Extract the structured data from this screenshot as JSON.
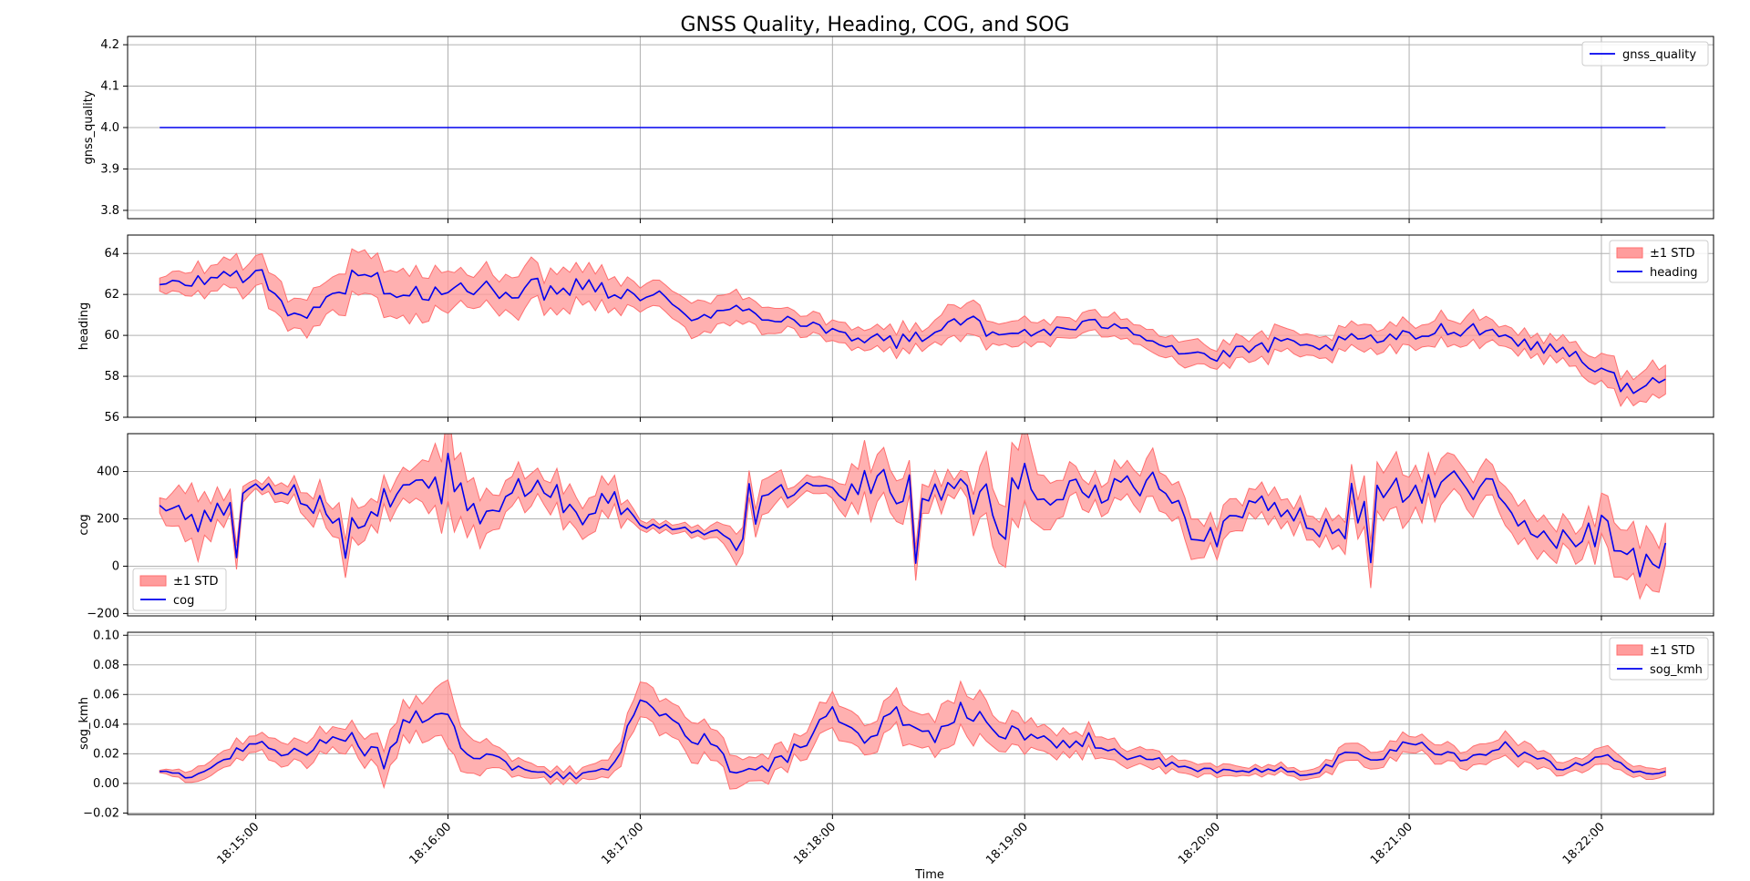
{
  "figure": {
    "title": "GNSS Quality, Heading, COG, and SOG",
    "xlabel": "Time"
  },
  "colors": {
    "line": "#0000ee",
    "band_fill": "#ff9c9c",
    "band_edge": "#ff6f6f",
    "grid": "#b0b0b0"
  },
  "chart_data": [
    {
      "type": "line",
      "ylabel": "gnss_quality",
      "ylim": [
        3.78,
        4.22
      ],
      "yticks": [
        3.8,
        3.9,
        4.0,
        4.1,
        4.2
      ],
      "ytick_labels": [
        "3.8",
        "3.9",
        "4.0",
        "4.1",
        "4.2"
      ],
      "legend_loc": "upper right",
      "grid": true,
      "series": [
        {
          "name": "gnss_quality",
          "x": [
            "18:14:30",
            "18:22:20"
          ],
          "values": [
            4.0,
            4.0
          ]
        }
      ]
    },
    {
      "type": "area",
      "ylabel": "heading",
      "ylim": [
        56,
        64.9
      ],
      "yticks": [
        56,
        58,
        60,
        62,
        64
      ],
      "ytick_labels": [
        "56",
        "58",
        "60",
        "62",
        "64"
      ],
      "legend_loc": "upper right",
      "grid": true,
      "band_label": "±1 STD",
      "series": [
        {
          "name": "heading",
          "x": [
            "18:14:30",
            "18:14:40",
            "18:14:50",
            "18:15:00",
            "18:15:10",
            "18:15:20",
            "18:15:30",
            "18:15:40",
            "18:15:50",
            "18:16:00",
            "18:16:10",
            "18:16:20",
            "18:16:30",
            "18:16:40",
            "18:16:50",
            "18:17:00",
            "18:17:10",
            "18:17:20",
            "18:17:30",
            "18:17:40",
            "18:17:50",
            "18:18:00",
            "18:18:10",
            "18:18:20",
            "18:18:30",
            "18:18:40",
            "18:18:50",
            "18:19:00",
            "18:19:10",
            "18:19:20",
            "18:19:30",
            "18:19:40",
            "18:19:50",
            "18:20:00",
            "18:20:10",
            "18:20:20",
            "18:20:30",
            "18:20:40",
            "18:20:50",
            "18:21:00",
            "18:21:10",
            "18:21:20",
            "18:21:30",
            "18:21:40",
            "18:21:50",
            "18:22:00",
            "18:22:10",
            "18:22:20"
          ],
          "values": [
            62.4,
            62.6,
            62.9,
            63.1,
            61.2,
            61.1,
            62.9,
            62.6,
            61.8,
            62.3,
            62.1,
            62.4,
            62.2,
            62.6,
            62.3,
            62.0,
            61.7,
            60.8,
            61.3,
            61.0,
            60.7,
            60.2,
            59.9,
            59.7,
            60.0,
            61.0,
            59.9,
            60.2,
            60.2,
            60.5,
            60.6,
            59.8,
            59.2,
            58.9,
            59.3,
            59.6,
            59.3,
            59.7,
            59.8,
            59.9,
            60.3,
            60.4,
            60.0,
            59.4,
            59.3,
            58.2,
            57.3,
            57.8
          ],
          "std": [
            0.4,
            0.6,
            0.7,
            0.8,
            0.8,
            0.9,
            1.0,
            1.1,
            1.2,
            0.9,
            0.8,
            1.0,
            0.9,
            1.0,
            0.8,
            0.6,
            0.7,
            0.8,
            0.7,
            0.6,
            0.5,
            0.5,
            0.5,
            0.6,
            0.5,
            0.9,
            0.6,
            0.6,
            0.5,
            0.5,
            0.5,
            0.5,
            0.6,
            0.5,
            0.6,
            0.6,
            0.5,
            0.6,
            0.6,
            0.6,
            0.6,
            0.7,
            0.5,
            0.5,
            0.6,
            0.7,
            0.7,
            0.8
          ]
        }
      ]
    },
    {
      "type": "area",
      "ylabel": "cog",
      "ylim": [
        -210,
        560
      ],
      "yticks": [
        -200,
        0,
        200,
        400
      ],
      "ytick_labels": [
        "−200",
        "0",
        "200",
        "400"
      ],
      "legend_loc": "lower left",
      "grid": true,
      "band_label": "±1 STD",
      "series": [
        {
          "name": "cog",
          "x": [
            "18:14:30",
            "18:14:40",
            "18:14:50",
            "18:15:00",
            "18:15:10",
            "18:15:20",
            "18:15:30",
            "18:15:40",
            "18:15:50",
            "18:16:00",
            "18:16:10",
            "18:16:20",
            "18:16:30",
            "18:16:40",
            "18:16:50",
            "18:17:00",
            "18:17:10",
            "18:17:20",
            "18:17:30",
            "18:17:40",
            "18:17:50",
            "18:18:00",
            "18:18:10",
            "18:18:20",
            "18:18:30",
            "18:18:40",
            "18:18:50",
            "18:19:00",
            "18:19:10",
            "18:19:20",
            "18:19:30",
            "18:19:40",
            "18:19:50",
            "18:20:00",
            "18:20:10",
            "18:20:20",
            "18:20:30",
            "18:20:40",
            "18:20:50",
            "18:21:00",
            "18:21:10",
            "18:21:20",
            "18:21:30",
            "18:21:40",
            "18:21:50",
            "18:22:00",
            "18:22:10",
            "18:22:20"
          ],
          "values": [
            250,
            180,
            210,
            330,
            320,
            260,
            170,
            290,
            350,
            330,
            200,
            340,
            350,
            220,
            300,
            170,
            160,
            150,
            120,
            280,
            330,
            330,
            340,
            340,
            300,
            350,
            180,
            330,
            320,
            300,
            350,
            330,
            200,
            110,
            260,
            230,
            180,
            120,
            250,
            340,
            350,
            330,
            320,
            100,
            120,
            140,
            20,
            30
          ],
          "std": [
            40,
            120,
            60,
            20,
            40,
            60,
            80,
            60,
            70,
            180,
            90,
            70,
            60,
            80,
            70,
            20,
            20,
            20,
            60,
            70,
            30,
            40,
            110,
            90,
            60,
            40,
            140,
            160,
            80,
            60,
            70,
            90,
            80,
            70,
            60,
            60,
            50,
            70,
            110,
            100,
            90,
            70,
            80,
            80,
            60,
            90,
            120,
            100
          ]
        }
      ]
    },
    {
      "type": "area",
      "ylabel": "sog_kmh",
      "ylim": [
        -0.021,
        0.102
      ],
      "yticks": [
        -0.02,
        0.0,
        0.02,
        0.04,
        0.06,
        0.08,
        0.1
      ],
      "ytick_labels": [
        "−0.02",
        "0.00",
        "0.02",
        "0.04",
        "0.06",
        "0.08",
        "0.10"
      ],
      "legend_loc": "upper right",
      "grid": true,
      "band_label": "±1 STD",
      "series": [
        {
          "name": "sog_kmh",
          "x": [
            "18:14:30",
            "18:14:40",
            "18:14:50",
            "18:15:00",
            "18:15:10",
            "18:15:20",
            "18:15:30",
            "18:15:40",
            "18:15:50",
            "18:16:00",
            "18:16:10",
            "18:16:20",
            "18:16:30",
            "18:16:40",
            "18:16:50",
            "18:17:00",
            "18:17:10",
            "18:17:20",
            "18:17:30",
            "18:17:40",
            "18:17:50",
            "18:18:00",
            "18:18:10",
            "18:18:20",
            "18:18:30",
            "18:18:40",
            "18:18:50",
            "18:19:00",
            "18:19:10",
            "18:19:20",
            "18:19:30",
            "18:19:40",
            "18:19:50",
            "18:20:00",
            "18:20:10",
            "18:20:20",
            "18:20:30",
            "18:20:40",
            "18:20:50",
            "18:21:00",
            "18:21:10",
            "18:21:20",
            "18:21:30",
            "18:21:40",
            "18:21:50",
            "18:22:00",
            "18:22:10",
            "18:22:20"
          ],
          "values": [
            0.008,
            0.005,
            0.015,
            0.03,
            0.02,
            0.025,
            0.03,
            0.015,
            0.05,
            0.035,
            0.02,
            0.01,
            0.006,
            0.005,
            0.01,
            0.05,
            0.04,
            0.03,
            0.005,
            0.01,
            0.025,
            0.045,
            0.025,
            0.05,
            0.03,
            0.05,
            0.04,
            0.03,
            0.025,
            0.03,
            0.02,
            0.015,
            0.01,
            0.008,
            0.008,
            0.01,
            0.005,
            0.02,
            0.015,
            0.03,
            0.02,
            0.018,
            0.025,
            0.015,
            0.01,
            0.02,
            0.008,
            0.007
          ],
          "std": [
            0.001,
            0.004,
            0.006,
            0.006,
            0.008,
            0.008,
            0.008,
            0.012,
            0.012,
            0.02,
            0.01,
            0.006,
            0.004,
            0.004,
            0.006,
            0.012,
            0.012,
            0.012,
            0.01,
            0.008,
            0.008,
            0.012,
            0.01,
            0.012,
            0.012,
            0.016,
            0.012,
            0.01,
            0.008,
            0.008,
            0.006,
            0.006,
            0.004,
            0.004,
            0.003,
            0.003,
            0.003,
            0.006,
            0.006,
            0.006,
            0.006,
            0.006,
            0.008,
            0.006,
            0.004,
            0.006,
            0.004,
            0.003
          ]
        }
      ]
    }
  ],
  "x_axis": {
    "range": [
      "18:14:20",
      "18:22:35"
    ],
    "ticks": [
      "18:15:00",
      "18:16:00",
      "18:17:00",
      "18:18:00",
      "18:19:00",
      "18:20:00",
      "18:21:00",
      "18:22:00"
    ],
    "tick_labels": [
      "18:15:00",
      "18:16:00",
      "18:17:00",
      "18:18:00",
      "18:19:00",
      "18:20:00",
      "18:21:00",
      "18:22:00"
    ]
  }
}
